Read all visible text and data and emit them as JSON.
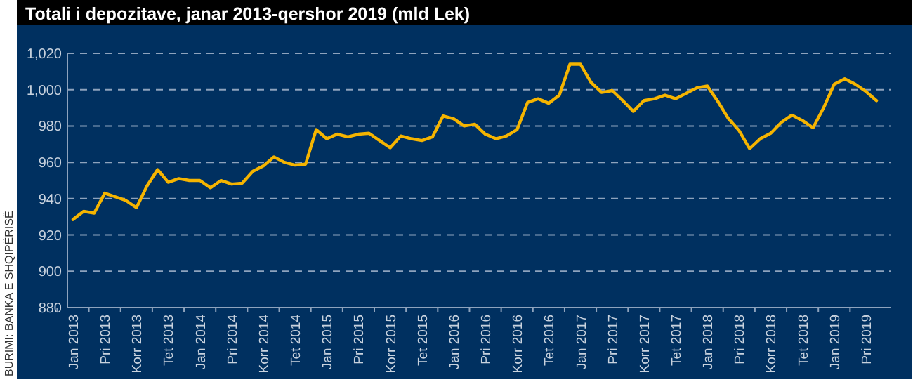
{
  "chart_data": {
    "type": "line",
    "title": "Totali i depozitave, janar 2013-qershor 2019 (mld Lek)",
    "annotations": [
      "BURIMI: BANKA E SHQIPËRISË"
    ],
    "categories": [
      "Jan 2013",
      null,
      null,
      "Pri 2013",
      null,
      null,
      "Korr 2013",
      null,
      null,
      "Tet 2013",
      null,
      null,
      "Jan 2014",
      null,
      null,
      "Pri 2014",
      null,
      null,
      "Korr 2014",
      null,
      null,
      "Tet 2014",
      null,
      null,
      "Jan 2015",
      null,
      null,
      "Pri 2015",
      null,
      null,
      "Korr 2015",
      null,
      null,
      "Tet 2015",
      null,
      null,
      "Jan 2016",
      null,
      null,
      "Pri 2016",
      null,
      null,
      "Korr 2016",
      null,
      null,
      "Tet 2016",
      null,
      null,
      "Jan 2017",
      null,
      null,
      "Pri 2017",
      null,
      null,
      "Korr 2017",
      null,
      null,
      "Tet 2017",
      null,
      null,
      "Jan 2018",
      null,
      null,
      "Pri 2018",
      null,
      null,
      "Korr 2018",
      null,
      null,
      "Tet 2018",
      null,
      null,
      "Jan 2019",
      null,
      null,
      "Pri 2019",
      null
    ],
    "series": [
      {
        "color": "#f5b400",
        "values": [
          928.5,
          933,
          932,
          943,
          941,
          939,
          935,
          947,
          956,
          949,
          951,
          950,
          950,
          946,
          950,
          948,
          948.5,
          955,
          958,
          963,
          960,
          958.5,
          959,
          978,
          973,
          975.5,
          974,
          975.5,
          976,
          972,
          968,
          974.5,
          973,
          972,
          974,
          985.5,
          984,
          980,
          981,
          975.5,
          973,
          974.5,
          978,
          993,
          995,
          992.5,
          997,
          1014,
          1014,
          1004,
          998.5,
          999.5,
          994,
          988,
          994,
          995,
          997,
          995,
          998,
          1001,
          1002,
          993.5,
          984,
          977.5,
          967.5,
          973,
          976,
          982,
          986,
          983,
          979,
          990,
          1003,
          1006,
          1003,
          999,
          994
        ]
      }
    ],
    "ylim": [
      880,
      1020
    ],
    "yticks": [
      {
        "value": 880,
        "label": "880"
      },
      {
        "value": 900,
        "label": "900"
      },
      {
        "value": 920,
        "label": "920"
      },
      {
        "value": 940,
        "label": "940"
      },
      {
        "value": 960,
        "label": "960"
      },
      {
        "value": 980,
        "label": "980"
      },
      {
        "value": 1000,
        "label": "1,000"
      },
      {
        "value": 1020,
        "label": "1,020"
      }
    ],
    "grid": "y",
    "marker": "none",
    "line_style": "solid"
  }
}
